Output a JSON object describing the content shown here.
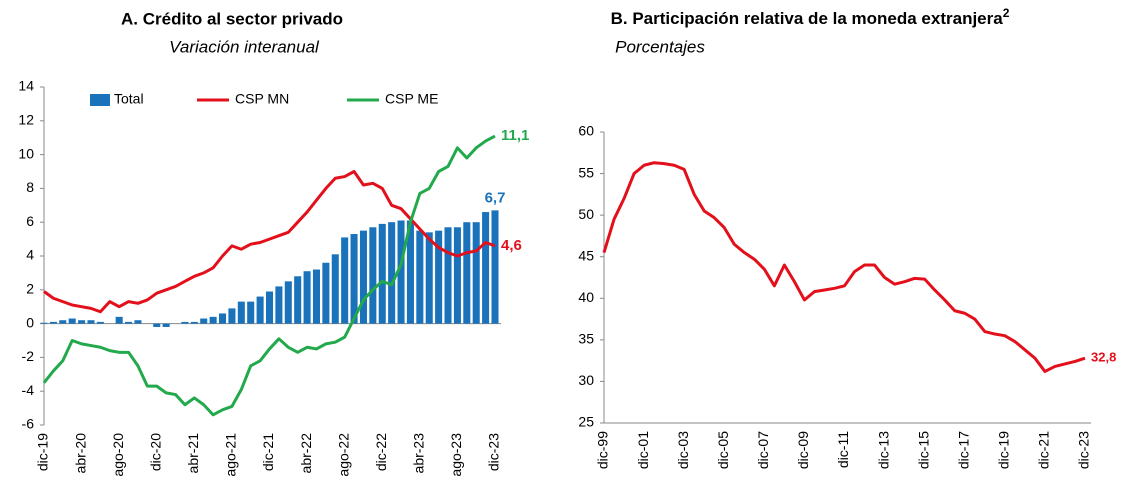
{
  "chart_data": [
    {
      "type": "bar",
      "title": "A. Crédito al sector privado",
      "subtitle": "Variación interanual",
      "categories": [
        "dic-19",
        null,
        null,
        null,
        "abr-20",
        null,
        null,
        null,
        "ago-20",
        null,
        null,
        null,
        "dic-20",
        null,
        null,
        null,
        "abr-21",
        null,
        null,
        null,
        "ago-21",
        null,
        null,
        null,
        "dic-21",
        null,
        null,
        null,
        "abr-22",
        null,
        null,
        null,
        "ago-22",
        null,
        null,
        null,
        "dic-22",
        null,
        null,
        null,
        "abr-23",
        null,
        null,
        null,
        "ago-23",
        null,
        null,
        null,
        "dic-23"
      ],
      "ylim": [
        -6,
        14
      ],
      "yticks": [
        -6,
        -4,
        -2,
        0,
        2,
        4,
        6,
        8,
        10,
        12,
        14
      ],
      "series": [
        {
          "name": "Total",
          "type": "bar",
          "color": "#1a72bb",
          "values": [
            0.05,
            0.1,
            0.2,
            0.3,
            0.2,
            0.2,
            0.1,
            0.0,
            0.4,
            0.1,
            0.2,
            0.0,
            -0.2,
            -0.2,
            0.0,
            0.1,
            0.1,
            0.3,
            0.4,
            0.6,
            0.9,
            1.3,
            1.3,
            1.6,
            1.9,
            2.2,
            2.5,
            2.8,
            3.1,
            3.2,
            3.6,
            4.1,
            5.1,
            5.3,
            5.5,
            5.7,
            5.9,
            6.0,
            6.1,
            6.1,
            5.5,
            5.4,
            5.5,
            5.7,
            5.7,
            6.0,
            6.0,
            6.6,
            6.7
          ],
          "value_labels": [
            null,
            null,
            null,
            null,
            null,
            null,
            null,
            null,
            null,
            null,
            null,
            null,
            null,
            null,
            null,
            null,
            null,
            null,
            null,
            null,
            null,
            null,
            null,
            null,
            null,
            null,
            null,
            null,
            null,
            null,
            null,
            null,
            null,
            null,
            null,
            null,
            null,
            null,
            null,
            null,
            null,
            null,
            null,
            null,
            null,
            null,
            null,
            null,
            "6,7"
          ]
        },
        {
          "name": "CSP MN",
          "type": "line",
          "color": "#e3101b",
          "values": [
            1.9,
            1.5,
            1.3,
            1.1,
            1.0,
            0.9,
            0.7,
            1.3,
            1.0,
            1.3,
            1.2,
            1.4,
            1.8,
            2.0,
            2.2,
            2.5,
            2.8,
            3.0,
            3.3,
            4.0,
            4.6,
            4.4,
            4.7,
            4.8,
            5.0,
            5.2,
            5.4,
            6.0,
            6.6,
            7.3,
            8.0,
            8.6,
            8.7,
            9.0,
            8.2,
            8.3,
            8.0,
            7.0,
            6.8,
            6.2,
            5.6,
            5.0,
            4.5,
            4.2,
            4.0,
            4.2,
            4.3,
            4.8,
            4.6
          ],
          "value_labels": [
            null,
            null,
            null,
            null,
            null,
            null,
            null,
            null,
            null,
            null,
            null,
            null,
            null,
            null,
            null,
            null,
            null,
            null,
            null,
            null,
            null,
            null,
            null,
            null,
            null,
            null,
            null,
            null,
            null,
            null,
            null,
            null,
            null,
            null,
            null,
            null,
            null,
            null,
            null,
            null,
            null,
            null,
            null,
            null,
            null,
            null,
            null,
            null,
            "4,6"
          ]
        },
        {
          "name": "CSP ME",
          "type": "line",
          "color": "#22a94b",
          "values": [
            -3.5,
            -2.8,
            -2.2,
            -1.0,
            -1.2,
            -1.3,
            -1.4,
            -1.6,
            -1.7,
            -1.7,
            -2.5,
            -3.7,
            -3.7,
            -4.1,
            -4.2,
            -4.8,
            -4.4,
            -4.8,
            -5.4,
            -5.1,
            -4.9,
            -3.9,
            -2.5,
            -2.2,
            -1.5,
            -0.9,
            -1.4,
            -1.7,
            -1.4,
            -1.5,
            -1.2,
            -1.1,
            -0.8,
            0.3,
            1.4,
            2.0,
            2.5,
            2.3,
            3.5,
            6.0,
            7.7,
            8.0,
            9.0,
            9.3,
            10.4,
            9.8,
            10.4,
            10.8,
            11.1
          ],
          "value_labels": [
            null,
            null,
            null,
            null,
            null,
            null,
            null,
            null,
            null,
            null,
            null,
            null,
            null,
            null,
            null,
            null,
            null,
            null,
            null,
            null,
            null,
            null,
            null,
            null,
            null,
            null,
            null,
            null,
            null,
            null,
            null,
            null,
            null,
            null,
            null,
            null,
            null,
            null,
            null,
            null,
            null,
            null,
            null,
            null,
            null,
            null,
            null,
            null,
            "11,1"
          ]
        }
      ]
    },
    {
      "type": "line",
      "title": "B. Participación relativa de la moneda extranjera",
      "title_note": "2",
      "subtitle": "Porcentajes",
      "categories": [
        "dic-99",
        null,
        null,
        null,
        "dic-01",
        null,
        null,
        null,
        "dic-03",
        null,
        null,
        null,
        "dic-05",
        null,
        null,
        null,
        "dic-07",
        null,
        null,
        null,
        "dic-09",
        null,
        null,
        null,
        "dic-11",
        null,
        null,
        null,
        "dic-13",
        null,
        null,
        null,
        "dic-15",
        null,
        null,
        null,
        "dic-17",
        null,
        null,
        null,
        "dic-19",
        null,
        null,
        null,
        "dic-21",
        null,
        null,
        null,
        "dic-23"
      ],
      "ylim": [
        25,
        60
      ],
      "yticks": [
        25,
        30,
        35,
        40,
        45,
        50,
        55,
        60
      ],
      "series": [
        {
          "type": "line",
          "color": "#e3101b",
          "values": [
            45.5,
            49.5,
            52,
            55,
            56,
            56.3,
            56.2,
            56,
            55.5,
            52.5,
            50.5,
            49.7,
            48.5,
            46.5,
            45.5,
            44.7,
            43.5,
            41.5,
            44,
            42,
            39.8,
            40.8,
            41.0,
            41.2,
            41.5,
            43.2,
            44,
            44,
            42.5,
            41.7,
            42,
            42.4,
            42.3,
            41,
            39.8,
            38.5,
            38.2,
            37.5,
            36,
            35.7,
            35.5,
            34.8,
            33.8,
            32.8,
            31.2,
            31.8,
            32.1,
            32.4,
            32.8
          ],
          "value_labels": [
            null,
            null,
            null,
            null,
            null,
            null,
            null,
            null,
            null,
            null,
            null,
            null,
            null,
            null,
            null,
            null,
            null,
            null,
            null,
            null,
            null,
            null,
            null,
            null,
            null,
            null,
            null,
            null,
            null,
            null,
            null,
            null,
            null,
            null,
            null,
            null,
            null,
            null,
            null,
            null,
            null,
            null,
            null,
            null,
            null,
            null,
            null,
            null,
            "32,8"
          ]
        }
      ]
    }
  ]
}
